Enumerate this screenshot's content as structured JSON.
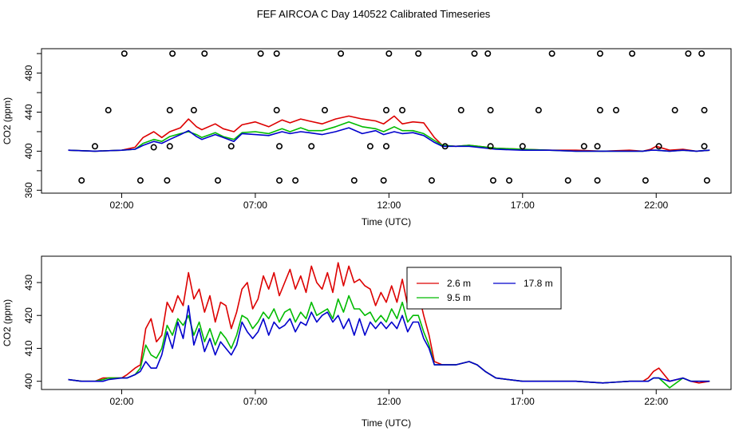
{
  "title": "FEF AIRCOA C  Day 140522  Calibrated Timeseries",
  "colors": {
    "red": "#dd0000",
    "green": "#00bb00",
    "blue": "#0000cc",
    "axis": "#000000"
  },
  "chart_data": [
    {
      "type": "line",
      "xlabel": "Time (UTC)",
      "ylabel": "CO2 (ppm)",
      "xticks": [
        "02:00",
        "07:00",
        "12:00",
        "17:00",
        "22:00"
      ],
      "xtick_hours": [
        2,
        7,
        12,
        17,
        22
      ],
      "yticks": [
        360,
        400,
        440,
        480
      ],
      "yminor": [
        380,
        420,
        460,
        500
      ],
      "xlim_hours": [
        -1.0,
        24.8
      ],
      "ylim": [
        357,
        505
      ],
      "series": [
        {
          "color": "red",
          "x": [
            0,
            1,
            2,
            2.5,
            2.8,
            3.2,
            3.5,
            3.8,
            4.2,
            4.5,
            4.8,
            5,
            5.5,
            5.8,
            6.2,
            6.5,
            7,
            7.5,
            8,
            8.3,
            8.7,
            9,
            9.5,
            10,
            10.5,
            11,
            11.5,
            11.8,
            12.2,
            12.5,
            12.9,
            13.3,
            13.7,
            14,
            14.5,
            15,
            16,
            17,
            18,
            19,
            20,
            21,
            21.5,
            21.8,
            22,
            22.5,
            23,
            23.5,
            24
          ],
          "y": [
            401,
            400,
            401,
            404,
            414,
            420,
            414,
            420,
            424,
            433,
            425,
            422,
            428,
            423,
            420,
            427,
            430,
            425,
            432,
            429,
            433,
            431,
            428,
            433,
            436,
            433,
            431,
            428,
            436,
            428,
            430,
            429,
            414,
            406,
            405,
            406,
            403,
            402,
            401,
            401,
            400,
            401,
            400,
            402,
            405,
            401,
            402,
            400,
            401
          ]
        },
        {
          "color": "green",
          "x": [
            0,
            1,
            2,
            2.5,
            2.8,
            3.2,
            3.5,
            3.8,
            4.2,
            4.5,
            4.8,
            5,
            5.5,
            5.8,
            6.2,
            6.5,
            7,
            7.5,
            8,
            8.3,
            8.7,
            9,
            9.5,
            10,
            10.5,
            11,
            11.5,
            11.8,
            12.2,
            12.5,
            12.9,
            13.3,
            13.7,
            14,
            14.5,
            15,
            16,
            17,
            18,
            19,
            20,
            21,
            21.5,
            21.8,
            22,
            22.5,
            23,
            23.5,
            24
          ],
          "y": [
            401,
            400,
            401,
            402,
            408,
            412,
            410,
            415,
            418,
            420,
            417,
            414,
            419,
            415,
            412,
            419,
            420,
            418,
            423,
            420,
            424,
            421,
            421,
            425,
            430,
            425,
            423,
            420,
            425,
            421,
            421,
            418,
            411,
            406,
            405,
            406,
            403,
            402,
            401,
            400,
            400,
            400,
            400,
            401,
            401,
            400,
            401,
            400,
            401
          ]
        },
        {
          "color": "blue",
          "x": [
            0,
            1,
            2,
            2.5,
            2.8,
            3.2,
            3.5,
            3.8,
            4.2,
            4.5,
            4.8,
            5,
            5.5,
            5.8,
            6.2,
            6.5,
            7,
            7.5,
            8,
            8.3,
            8.7,
            9,
            9.5,
            10,
            10.5,
            11,
            11.5,
            11.8,
            12.2,
            12.5,
            12.9,
            13.3,
            13.7,
            14,
            14.5,
            15,
            16,
            17,
            18,
            19,
            20,
            21,
            21.5,
            21.8,
            22,
            22.5,
            23,
            23.5,
            24
          ],
          "y": [
            401,
            400,
            401,
            402,
            406,
            410,
            408,
            412,
            417,
            421,
            415,
            412,
            417,
            414,
            410,
            418,
            417,
            416,
            420,
            418,
            420,
            419,
            417,
            420,
            424,
            418,
            421,
            417,
            420,
            418,
            419,
            416,
            409,
            405,
            405,
            405,
            402,
            401,
            401,
            400,
            400,
            400,
            400,
            401,
            401,
            400,
            401,
            400,
            401
          ]
        }
      ],
      "points": [
        {
          "x": 0.5,
          "y": 370
        },
        {
          "x": 1,
          "y": 405
        },
        {
          "x": 1.5,
          "y": 442
        },
        {
          "x": 2.1,
          "y": 500
        },
        {
          "x": 2.7,
          "y": 370
        },
        {
          "x": 3.2,
          "y": 404
        },
        {
          "x": 3.7,
          "y": 370
        },
        {
          "x": 3.8,
          "y": 442
        },
        {
          "x": 3.8,
          "y": 405
        },
        {
          "x": 3.9,
          "y": 500
        },
        {
          "x": 4.7,
          "y": 442
        },
        {
          "x": 5.1,
          "y": 500
        },
        {
          "x": 5.6,
          "y": 370
        },
        {
          "x": 6.1,
          "y": 405
        },
        {
          "x": 7.2,
          "y": 500
        },
        {
          "x": 7.8,
          "y": 500
        },
        {
          "x": 7.8,
          "y": 442
        },
        {
          "x": 7.9,
          "y": 405
        },
        {
          "x": 7.9,
          "y": 370
        },
        {
          "x": 8.5,
          "y": 370
        },
        {
          "x": 9.1,
          "y": 405
        },
        {
          "x": 9.6,
          "y": 442
        },
        {
          "x": 10.2,
          "y": 500
        },
        {
          "x": 10.7,
          "y": 370
        },
        {
          "x": 11.3,
          "y": 405
        },
        {
          "x": 11.8,
          "y": 370
        },
        {
          "x": 11.9,
          "y": 405
        },
        {
          "x": 11.9,
          "y": 442
        },
        {
          "x": 12,
          "y": 500
        },
        {
          "x": 12.5,
          "y": 442
        },
        {
          "x": 13.1,
          "y": 500
        },
        {
          "x": 13.6,
          "y": 370
        },
        {
          "x": 14.1,
          "y": 405
        },
        {
          "x": 14.7,
          "y": 442
        },
        {
          "x": 15.2,
          "y": 500
        },
        {
          "x": 15.7,
          "y": 500
        },
        {
          "x": 15.8,
          "y": 442
        },
        {
          "x": 15.8,
          "y": 405
        },
        {
          "x": 15.9,
          "y": 370
        },
        {
          "x": 16.5,
          "y": 370
        },
        {
          "x": 17,
          "y": 405
        },
        {
          "x": 17.6,
          "y": 442
        },
        {
          "x": 18.1,
          "y": 500
        },
        {
          "x": 18.7,
          "y": 370
        },
        {
          "x": 19.3,
          "y": 405
        },
        {
          "x": 19.8,
          "y": 370
        },
        {
          "x": 19.8,
          "y": 405
        },
        {
          "x": 19.9,
          "y": 442
        },
        {
          "x": 19.9,
          "y": 500
        },
        {
          "x": 20.5,
          "y": 442
        },
        {
          "x": 21.1,
          "y": 500
        },
        {
          "x": 21.6,
          "y": 370
        },
        {
          "x": 22.1,
          "y": 405
        },
        {
          "x": 22.7,
          "y": 442
        },
        {
          "x": 23.2,
          "y": 500
        },
        {
          "x": 23.7,
          "y": 500
        },
        {
          "x": 23.8,
          "y": 442
        },
        {
          "x": 23.8,
          "y": 405
        },
        {
          "x": 23.9,
          "y": 370
        }
      ]
    },
    {
      "type": "line",
      "xlabel": "Time (UTC)",
      "ylabel": "CO2 (ppm)",
      "xticks": [
        "02:00",
        "07:00",
        "12:00",
        "17:00",
        "22:00"
      ],
      "xtick_hours": [
        2,
        7,
        12,
        17,
        22
      ],
      "yticks": [
        400,
        410,
        420,
        430
      ],
      "xlim_hours": [
        -1.0,
        24.8
      ],
      "ylim": [
        397.5,
        438
      ],
      "legend": {
        "placement": "top-right",
        "entries": [
          {
            "label": "2.6 m",
            "color": "red"
          },
          {
            "label": "17.8 m",
            "color": "blue"
          },
          {
            "label": "9.5 m",
            "color": "green"
          }
        ]
      },
      "series": [
        {
          "color": "red",
          "x": [
            0,
            0.5,
            1,
            1.3,
            1.5,
            2,
            2.2,
            2.5,
            2.7,
            2.9,
            3.1,
            3.3,
            3.5,
            3.7,
            3.9,
            4.1,
            4.3,
            4.5,
            4.7,
            4.9,
            5.1,
            5.3,
            5.5,
            5.7,
            5.9,
            6.1,
            6.3,
            6.5,
            6.7,
            6.9,
            7.1,
            7.3,
            7.5,
            7.7,
            7.9,
            8.1,
            8.3,
            8.5,
            8.7,
            8.9,
            9.1,
            9.3,
            9.5,
            9.7,
            9.9,
            10.1,
            10.3,
            10.5,
            10.7,
            10.9,
            11.1,
            11.3,
            11.5,
            11.7,
            11.9,
            12.1,
            12.3,
            12.5,
            12.7,
            12.9,
            13.1,
            13.3,
            13.5,
            13.7,
            14,
            14.5,
            15,
            15.3,
            15.6,
            16,
            17,
            18,
            19,
            20,
            21,
            21.3,
            21.5,
            21.7,
            21.9,
            22.1,
            22.5,
            23,
            23.3,
            23.6,
            24
          ],
          "y": [
            400.5,
            400,
            400,
            401,
            401,
            401,
            402,
            404,
            405,
            416,
            419,
            412,
            414,
            424,
            421,
            426,
            423,
            433,
            425,
            428,
            421,
            426,
            418,
            424,
            423,
            416,
            421,
            428,
            430,
            422,
            425,
            432,
            428,
            433,
            426,
            430,
            434,
            428,
            432,
            427,
            435,
            430,
            428,
            433,
            427,
            436,
            429,
            435,
            430,
            431,
            429,
            428,
            423,
            427,
            424,
            429,
            424,
            431,
            423,
            426,
            427,
            420,
            414,
            406,
            405,
            405,
            406,
            405,
            403,
            401,
            400,
            400,
            400,
            399.5,
            400,
            400,
            400,
            401,
            403,
            404,
            400,
            401,
            400,
            399.5,
            400
          ]
        },
        {
          "color": "green",
          "x": [
            0,
            0.5,
            1,
            1.3,
            1.5,
            2,
            2.2,
            2.5,
            2.7,
            2.9,
            3.1,
            3.3,
            3.5,
            3.7,
            3.9,
            4.1,
            4.3,
            4.5,
            4.7,
            4.9,
            5.1,
            5.3,
            5.5,
            5.7,
            5.9,
            6.1,
            6.3,
            6.5,
            6.7,
            6.9,
            7.1,
            7.3,
            7.5,
            7.7,
            7.9,
            8.1,
            8.3,
            8.5,
            8.7,
            8.9,
            9.1,
            9.3,
            9.5,
            9.7,
            9.9,
            10.1,
            10.3,
            10.5,
            10.7,
            10.9,
            11.1,
            11.3,
            11.5,
            11.7,
            11.9,
            12.1,
            12.3,
            12.5,
            12.7,
            12.9,
            13.1,
            13.3,
            13.5,
            13.7,
            14,
            14.5,
            15,
            15.3,
            15.6,
            16,
            17,
            18,
            19,
            20,
            21,
            21.3,
            21.5,
            21.7,
            21.9,
            22.1,
            22.5,
            23,
            23.3,
            23.6,
            24
          ],
          "y": [
            400.5,
            400,
            400,
            400.5,
            401,
            401,
            401,
            402,
            404,
            411,
            408,
            407,
            410,
            417,
            414,
            419,
            417,
            420,
            414,
            418,
            412,
            416,
            411,
            415,
            413,
            410,
            414,
            420,
            419,
            416,
            418,
            421,
            419,
            422,
            418,
            421,
            422,
            418,
            421,
            419,
            424,
            420,
            421,
            422,
            419,
            425,
            421,
            426,
            422,
            422,
            420,
            421,
            418,
            420,
            418,
            422,
            419,
            424,
            418,
            420,
            420,
            415,
            411,
            405,
            405,
            405,
            406,
            405,
            403,
            401,
            400,
            400,
            400,
            399.5,
            400,
            400,
            400,
            400,
            401,
            401,
            398,
            401,
            400,
            400,
            400
          ]
        },
        {
          "color": "blue",
          "x": [
            0,
            0.5,
            1,
            1.3,
            1.5,
            2,
            2.2,
            2.5,
            2.7,
            2.9,
            3.1,
            3.3,
            3.5,
            3.7,
            3.9,
            4.1,
            4.3,
            4.5,
            4.7,
            4.9,
            5.1,
            5.3,
            5.5,
            5.7,
            5.9,
            6.1,
            6.3,
            6.5,
            6.7,
            6.9,
            7.1,
            7.3,
            7.5,
            7.7,
            7.9,
            8.1,
            8.3,
            8.5,
            8.7,
            8.9,
            9.1,
            9.3,
            9.5,
            9.7,
            9.9,
            10.1,
            10.3,
            10.5,
            10.7,
            10.9,
            11.1,
            11.3,
            11.5,
            11.7,
            11.9,
            12.1,
            12.3,
            12.5,
            12.7,
            12.9,
            13.1,
            13.3,
            13.5,
            13.7,
            14,
            14.5,
            15,
            15.3,
            15.6,
            16,
            17,
            18,
            19,
            20,
            21,
            21.3,
            21.5,
            21.7,
            21.9,
            22.1,
            22.5,
            23,
            23.3,
            23.6,
            24
          ],
          "y": [
            400.5,
            400,
            400,
            400,
            400.5,
            401,
            401,
            402,
            403,
            406,
            404,
            404,
            408,
            415,
            410,
            418,
            413,
            423,
            411,
            416,
            409,
            413,
            408,
            412,
            410,
            408,
            411,
            418,
            415,
            413,
            415,
            419,
            414,
            418,
            416,
            417,
            419,
            415,
            418,
            417,
            421,
            418,
            420,
            421,
            418,
            420,
            416,
            419,
            414,
            419,
            414,
            418,
            416,
            418,
            416,
            418,
            416,
            420,
            415,
            418,
            418,
            413,
            410,
            405,
            405,
            405,
            406,
            405,
            403,
            401,
            400,
            400,
            400,
            399.5,
            400,
            400,
            400,
            400,
            401,
            401,
            400,
            401,
            400,
            400,
            400
          ]
        }
      ]
    }
  ]
}
